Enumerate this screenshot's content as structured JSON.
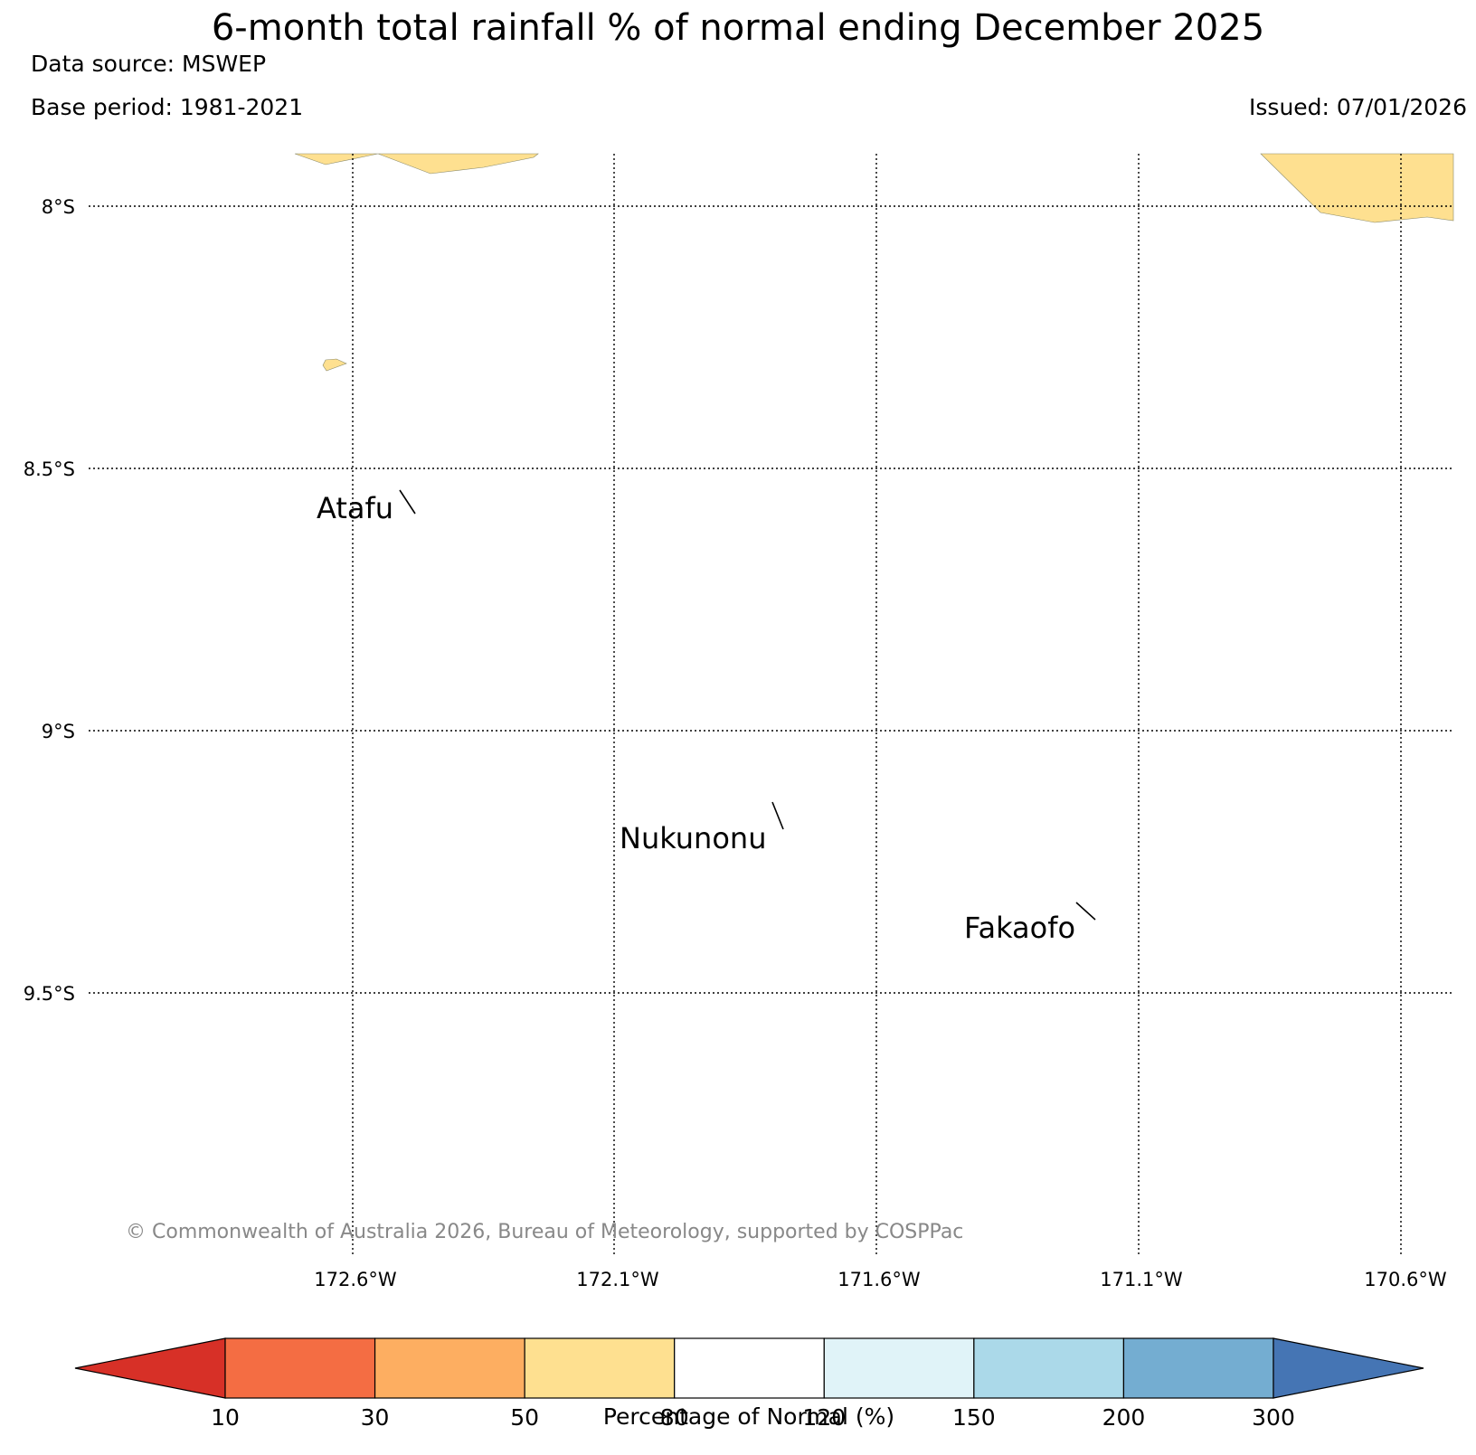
{
  "header": {
    "title": "6-month total rainfall % of normal ending December 2025",
    "data_source": "Data source: MSWEP",
    "base_period": "Base period: 1981-2021",
    "issued": "Issued: 07/01/2026"
  },
  "map": {
    "lat_labels": [
      "8°S",
      "8.5°S",
      "9°S",
      "9.5°S"
    ],
    "lon_labels": [
      "172.6°W",
      "172.1°W",
      "171.6°W",
      "171.1°W",
      "170.6°W"
    ],
    "places": {
      "atafu": "Atafu",
      "nukunonu": "Nukunonu",
      "fakaofo": "Fakaofo"
    },
    "region_color": "#fee090",
    "copyright": "© Commonwealth of Australia 2026, Bureau of Meteorology, supported by COSPPac"
  },
  "colorbar": {
    "label": "Percentage of Normal (%)",
    "ticks": [
      "10",
      "30",
      "50",
      "80",
      "120",
      "150",
      "200",
      "300"
    ],
    "under_color": "#d73027",
    "over_color": "#4575b4",
    "colors": [
      "#f46d43",
      "#fdae61",
      "#fee090",
      "#ffffff",
      "#e0f3f8",
      "#abd9e9",
      "#74add1"
    ]
  }
}
